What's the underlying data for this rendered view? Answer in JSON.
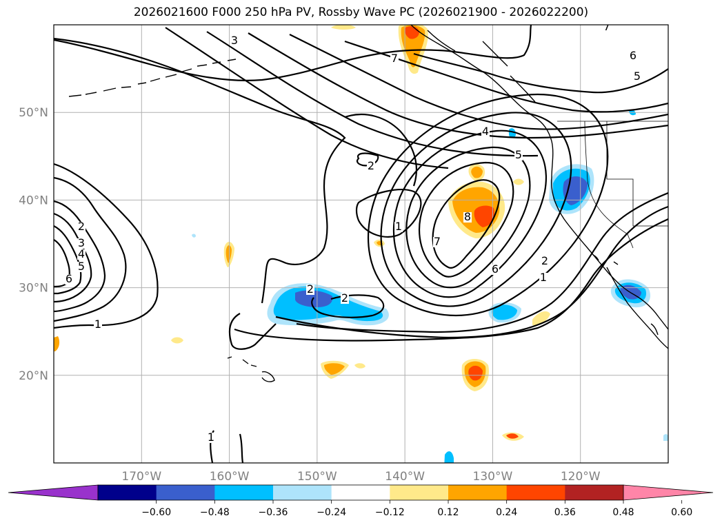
{
  "title": "2026021600 F000 250 hPa PV, Rossby Wave PC (2026021900 - 2026022200)",
  "map": {
    "projection": "equirectangular",
    "lon_range": [
      -180,
      -110
    ],
    "lat_range": [
      10,
      60
    ],
    "lat_ticks": [
      {
        "lat": 20,
        "label": "20°N"
      },
      {
        "lat": 30,
        "label": "30°N"
      },
      {
        "lat": 40,
        "label": "40°N"
      },
      {
        "lat": 50,
        "label": "50°N"
      }
    ],
    "lon_ticks": [
      {
        "lon": -170,
        "label": "170°W"
      },
      {
        "lon": -160,
        "label": "160°W"
      },
      {
        "lon": -150,
        "label": "150°W"
      },
      {
        "lon": -140,
        "label": "140°W"
      },
      {
        "lon": -130,
        "label": "130°W"
      },
      {
        "lon": -120,
        "label": "120°W"
      }
    ],
    "gridlines": true,
    "contour_labels": [
      "3",
      "7",
      "7",
      "6",
      "5",
      "4",
      "5",
      "2",
      "1",
      "2",
      "3",
      "4",
      "5",
      "6",
      "1",
      "7",
      "8",
      "6",
      "2",
      "1",
      "2",
      "2",
      "1"
    ]
  },
  "colorbar": {
    "ticks": [
      "−0.60",
      "−0.48",
      "−0.36",
      "−0.24",
      "−0.12",
      "0.12",
      "0.24",
      "0.36",
      "0.48",
      "0.60"
    ],
    "colors": [
      "#9932cc",
      "#00008b",
      "#3a5fcd",
      "#00bfff",
      "#aee4fb",
      "#ffffff",
      "#ffe98a",
      "#ffa500",
      "#ff4500",
      "#b22222",
      "#ff85a8"
    ],
    "extend": "both"
  }
}
